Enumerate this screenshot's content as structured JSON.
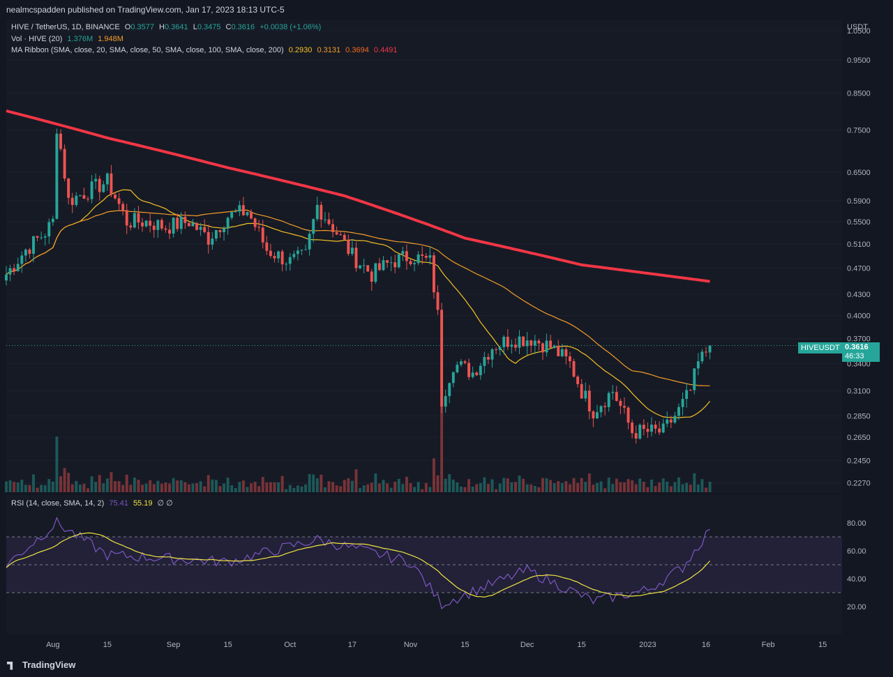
{
  "header": {
    "published_text": "nealmcspadden published on TradingView.com, Jan 17, 2023 18:13 UTC-5"
  },
  "legend": {
    "symbol_line": "HIVE / TetherUS, 1D, BINANCE",
    "ohlc": {
      "o_label": "O",
      "o": "0.3577",
      "h_label": "H",
      "h": "0.3641",
      "l_label": "L",
      "l": "0.3475",
      "c_label": "C",
      "c": "0.3616",
      "change": "+0.0038 (+1.06%)"
    },
    "vol_label": "Vol · HIVE (20)",
    "vol_value": "1.376M",
    "vol_ma": "1.948M",
    "ma_label": "MA Ribbon (SMA, close, 20, SMA, close, 50, SMA, close, 100, SMA, close, 200)",
    "ma_values": [
      "0.2930",
      "0.3131",
      "0.3694",
      "0.4491"
    ],
    "ma_colors": [
      "#f7c325",
      "#f59d28",
      "#f26b20",
      "#f23645"
    ]
  },
  "price_axis": {
    "currency": "USDT",
    "ticks": [
      "1.0500",
      "0.9500",
      "0.8500",
      "0.7500",
      "0.6500",
      "0.5900",
      "0.5500",
      "0.5100",
      "0.4700",
      "0.4300",
      "0.4000",
      "0.3700",
      "0.3400",
      "0.3100",
      "0.2850",
      "0.2650",
      "0.2450",
      "0.2270"
    ],
    "symbol_tag": "HIVEUSDT",
    "last_price": "0.3616",
    "countdown": "46:33"
  },
  "rsi": {
    "label": "RSI (14, close, SMA, 14, 2)",
    "value": "75.41",
    "ma_value": "55.19",
    "extra": "∅ ∅",
    "ticks": [
      "80.00",
      "60.00",
      "40.00",
      "20.00"
    ]
  },
  "time_axis": {
    "labels": [
      "Aug",
      "15",
      "Sep",
      "15",
      "Oct",
      "17",
      "Nov",
      "15",
      "Dec",
      "15",
      "2023",
      "16",
      "Feb",
      "15"
    ]
  },
  "branding": {
    "logo_text": "TradingView"
  },
  "colors": {
    "bg": "#131722",
    "up": "#26a69a",
    "down": "#ef5350",
    "ma200": "#f23645",
    "rsi": "#7e57c2",
    "rsi_ma": "#f0e442",
    "tag_bg": "#26a69a"
  },
  "chart_data": {
    "type": "candlestick",
    "symbol": "HIVE / TetherUS",
    "interval": "1D",
    "exchange": "BINANCE",
    "y_scale": "log",
    "ylim": [
      0.22,
      1.09
    ],
    "x_range": [
      "2022-07-20",
      "2023-02-20"
    ],
    "close_approx": [
      [
        "2022-07-20",
        0.46
      ],
      [
        "2022-07-25",
        0.5
      ],
      [
        "2022-07-30",
        0.53
      ],
      [
        "2022-08-01",
        0.55
      ],
      [
        "2022-08-02",
        0.76
      ],
      [
        "2022-08-05",
        0.59
      ],
      [
        "2022-08-10",
        0.61
      ],
      [
        "2022-08-15",
        0.63
      ],
      [
        "2022-08-20",
        0.55
      ],
      [
        "2022-08-25",
        0.55
      ],
      [
        "2022-08-30",
        0.54
      ],
      [
        "2022-09-05",
        0.55
      ],
      [
        "2022-09-10",
        0.52
      ],
      [
        "2022-09-15",
        0.56
      ],
      [
        "2022-09-20",
        0.57
      ],
      [
        "2022-09-25",
        0.5
      ],
      [
        "2022-10-01",
        0.48
      ],
      [
        "2022-10-05",
        0.49
      ],
      [
        "2022-10-08",
        0.58
      ],
      [
        "2022-10-12",
        0.54
      ],
      [
        "2022-10-17",
        0.49
      ],
      [
        "2022-10-22",
        0.46
      ],
      [
        "2022-10-27",
        0.48
      ],
      [
        "2022-11-01",
        0.49
      ],
      [
        "2022-11-06",
        0.48
      ],
      [
        "2022-11-08",
        0.4
      ],
      [
        "2022-11-09",
        0.3
      ],
      [
        "2022-11-12",
        0.34
      ],
      [
        "2022-11-17",
        0.33
      ],
      [
        "2022-11-22",
        0.36
      ],
      [
        "2022-11-27",
        0.37
      ],
      [
        "2022-12-02",
        0.37
      ],
      [
        "2022-12-07",
        0.36
      ],
      [
        "2022-12-12",
        0.34
      ],
      [
        "2022-12-15",
        0.31
      ],
      [
        "2022-12-18",
        0.29
      ],
      [
        "2022-12-23",
        0.31
      ],
      [
        "2022-12-28",
        0.27
      ],
      [
        "2023-01-01",
        0.27
      ],
      [
        "2023-01-05",
        0.27
      ],
      [
        "2023-01-09",
        0.29
      ],
      [
        "2023-01-12",
        0.31
      ],
      [
        "2023-01-14",
        0.34
      ],
      [
        "2023-01-17",
        0.3616
      ]
    ],
    "ma_200_approx": [
      [
        "2022-07-20",
        0.8
      ],
      [
        "2022-08-15",
        0.73
      ],
      [
        "2022-09-15",
        0.66
      ],
      [
        "2022-10-15",
        0.6
      ],
      [
        "2022-11-15",
        0.52
      ],
      [
        "2022-12-15",
        0.475
      ],
      [
        "2023-01-17",
        0.4491
      ]
    ],
    "rsi_approx": [
      [
        "2022-07-20",
        50
      ],
      [
        "2022-08-02",
        80
      ],
      [
        "2022-08-15",
        57
      ],
      [
        "2022-09-15",
        52
      ],
      [
        "2022-10-08",
        68
      ],
      [
        "2022-11-01",
        52
      ],
      [
        "2022-11-09",
        22
      ],
      [
        "2022-12-01",
        46
      ],
      [
        "2022-12-18",
        24
      ],
      [
        "2023-01-01",
        32
      ],
      [
        "2023-01-10",
        48
      ],
      [
        "2023-01-17",
        75.41
      ]
    ]
  }
}
